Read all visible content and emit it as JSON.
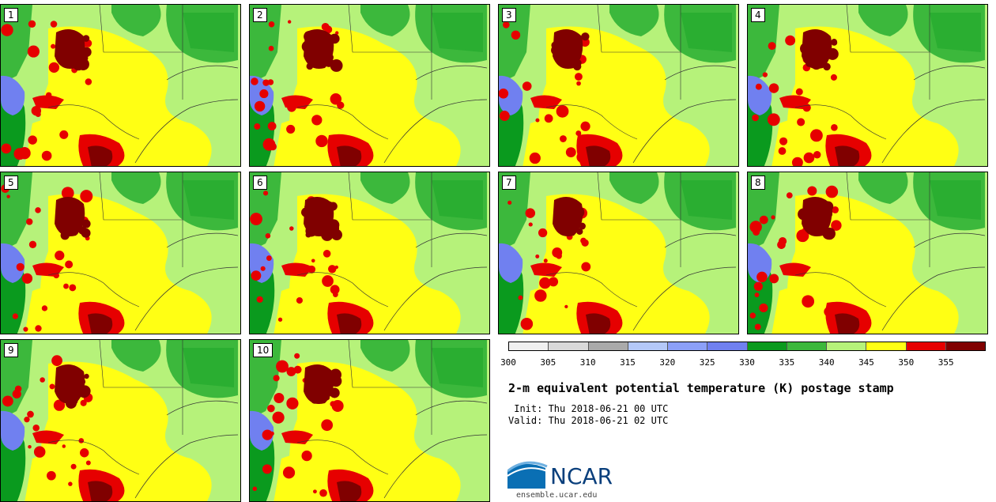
{
  "panels": [
    {
      "label": "1"
    },
    {
      "label": "2"
    },
    {
      "label": "3"
    },
    {
      "label": "4"
    },
    {
      "label": "5"
    },
    {
      "label": "6"
    },
    {
      "label": "7"
    },
    {
      "label": "8"
    },
    {
      "label": "9"
    },
    {
      "label": "10"
    }
  ],
  "colorbar": {
    "ticks": [
      "300",
      "305",
      "310",
      "315",
      "320",
      "325",
      "330",
      "335",
      "340",
      "345",
      "350",
      "355"
    ],
    "colors": [
      "#f0f0f0",
      "#d9d9d9",
      "#aaaaaa",
      "#b4c8f8",
      "#8ca0f8",
      "#7080f0",
      "#0a9a1e",
      "#3cb83c",
      "#b6f27a",
      "#ffff14",
      "#e60000",
      "#800000"
    ]
  },
  "title": "2-m equivalent potential temperature (K) postage stamp",
  "init": " Init: Thu 2018-06-21 00 UTC",
  "valid": "Valid: Thu 2018-06-21 02 UTC",
  "logo": {
    "text": "NCAR"
  },
  "website": "ensemble.ucar.edu"
}
